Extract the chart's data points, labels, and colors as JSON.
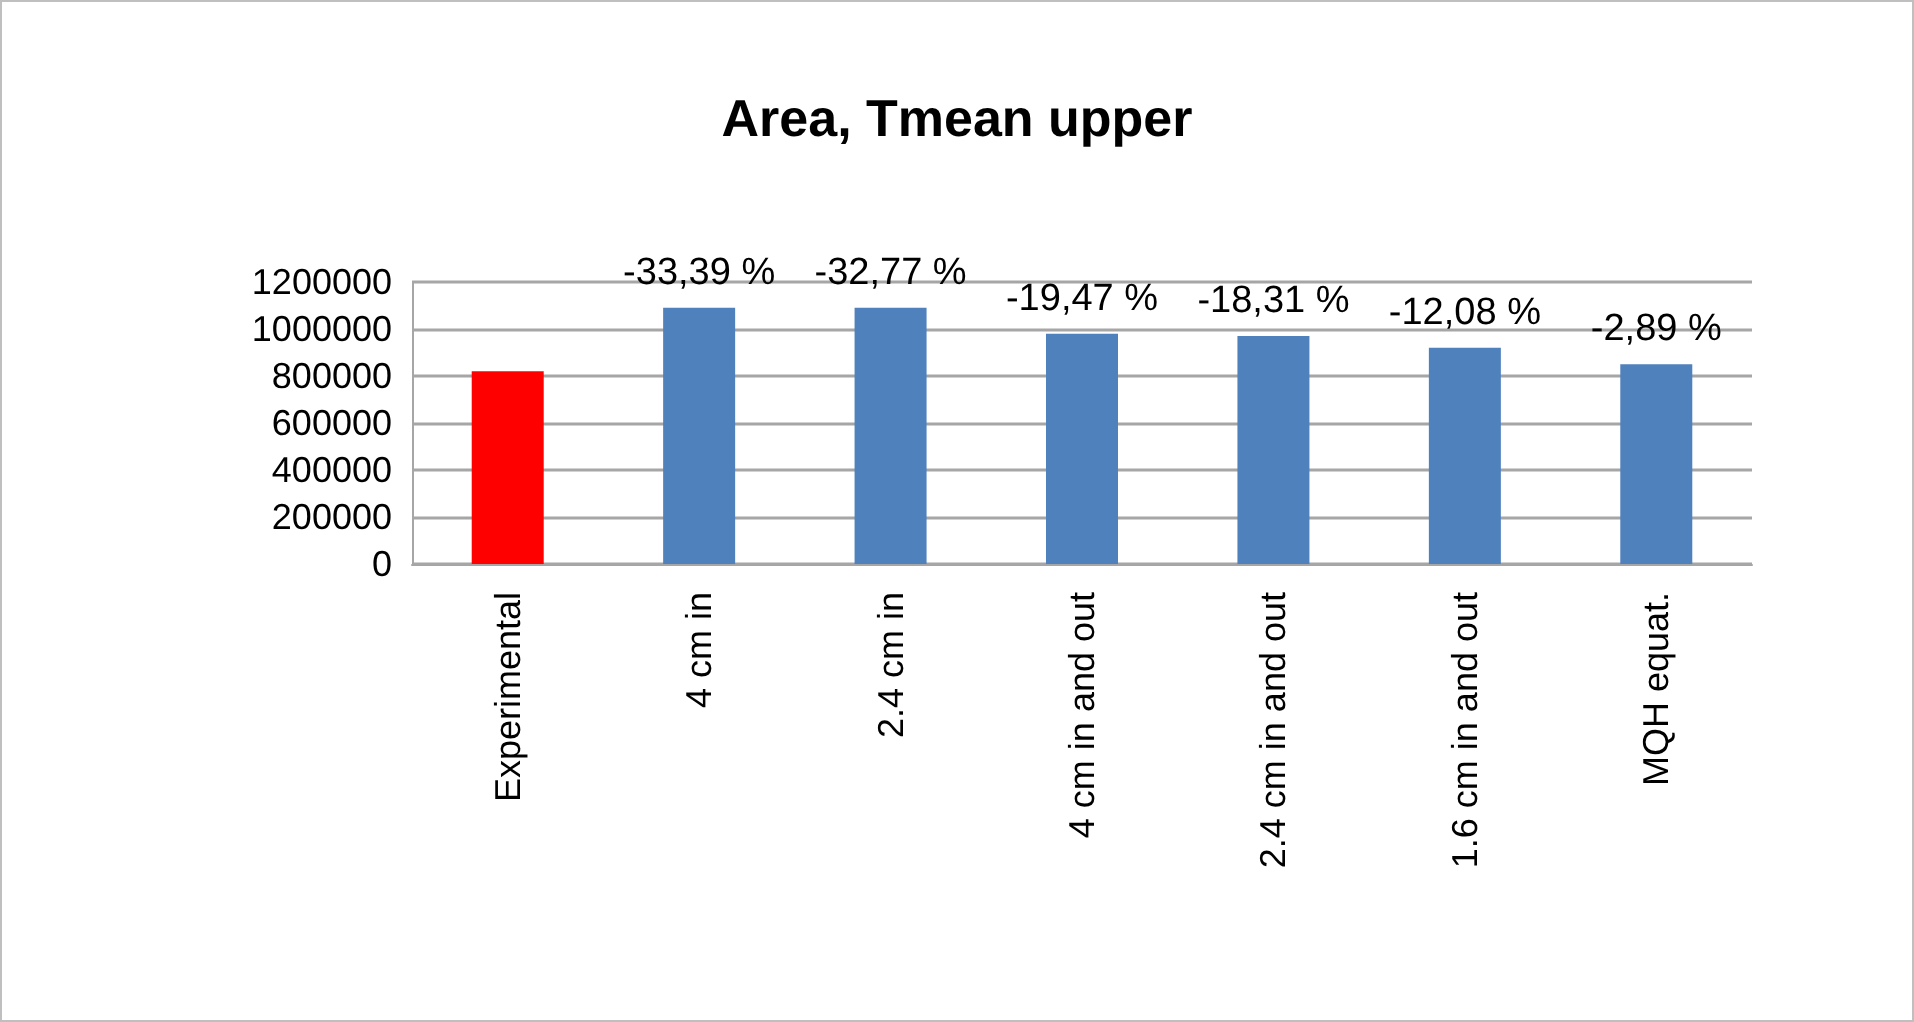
{
  "chart_data": {
    "type": "bar",
    "title": "Area, Tmean upper",
    "categories": [
      "Experimental",
      "4 cm in",
      "2.4 cm in",
      "4 cm in and out",
      "2.4 cm in and out",
      "1.6 cm in and out",
      "MQH equat."
    ],
    "values": [
      820000,
      1090000,
      1090000,
      980000,
      970000,
      920000,
      850000
    ],
    "colors": [
      "#ff0000",
      "#4f81bd",
      "#4f81bd",
      "#4f81bd",
      "#4f81bd",
      "#4f81bd",
      "#4f81bd"
    ],
    "annotations": [
      {
        "text": "-33,39 %",
        "x": "4 cm in",
        "y": 1090000
      },
      {
        "text": "-32,77 %",
        "x": "2.4 cm in",
        "y": 1090000
      },
      {
        "text": "-19,47 %",
        "x": "4 cm in and out",
        "y": 980000
      },
      {
        "text": "-18,31 %",
        "x": "2.4 cm in and out",
        "y": 970000
      },
      {
        "text": "-12,08 %",
        "x": "1.6 cm in and out",
        "y": 920000
      },
      {
        "text": "-2,89 %",
        "x": "MQH equat.",
        "y": 850000
      }
    ],
    "ylim": [
      0,
      1200000
    ],
    "yticks": [
      0,
      200000,
      400000,
      600000,
      800000,
      1000000,
      1200000
    ],
    "grid": "y"
  }
}
